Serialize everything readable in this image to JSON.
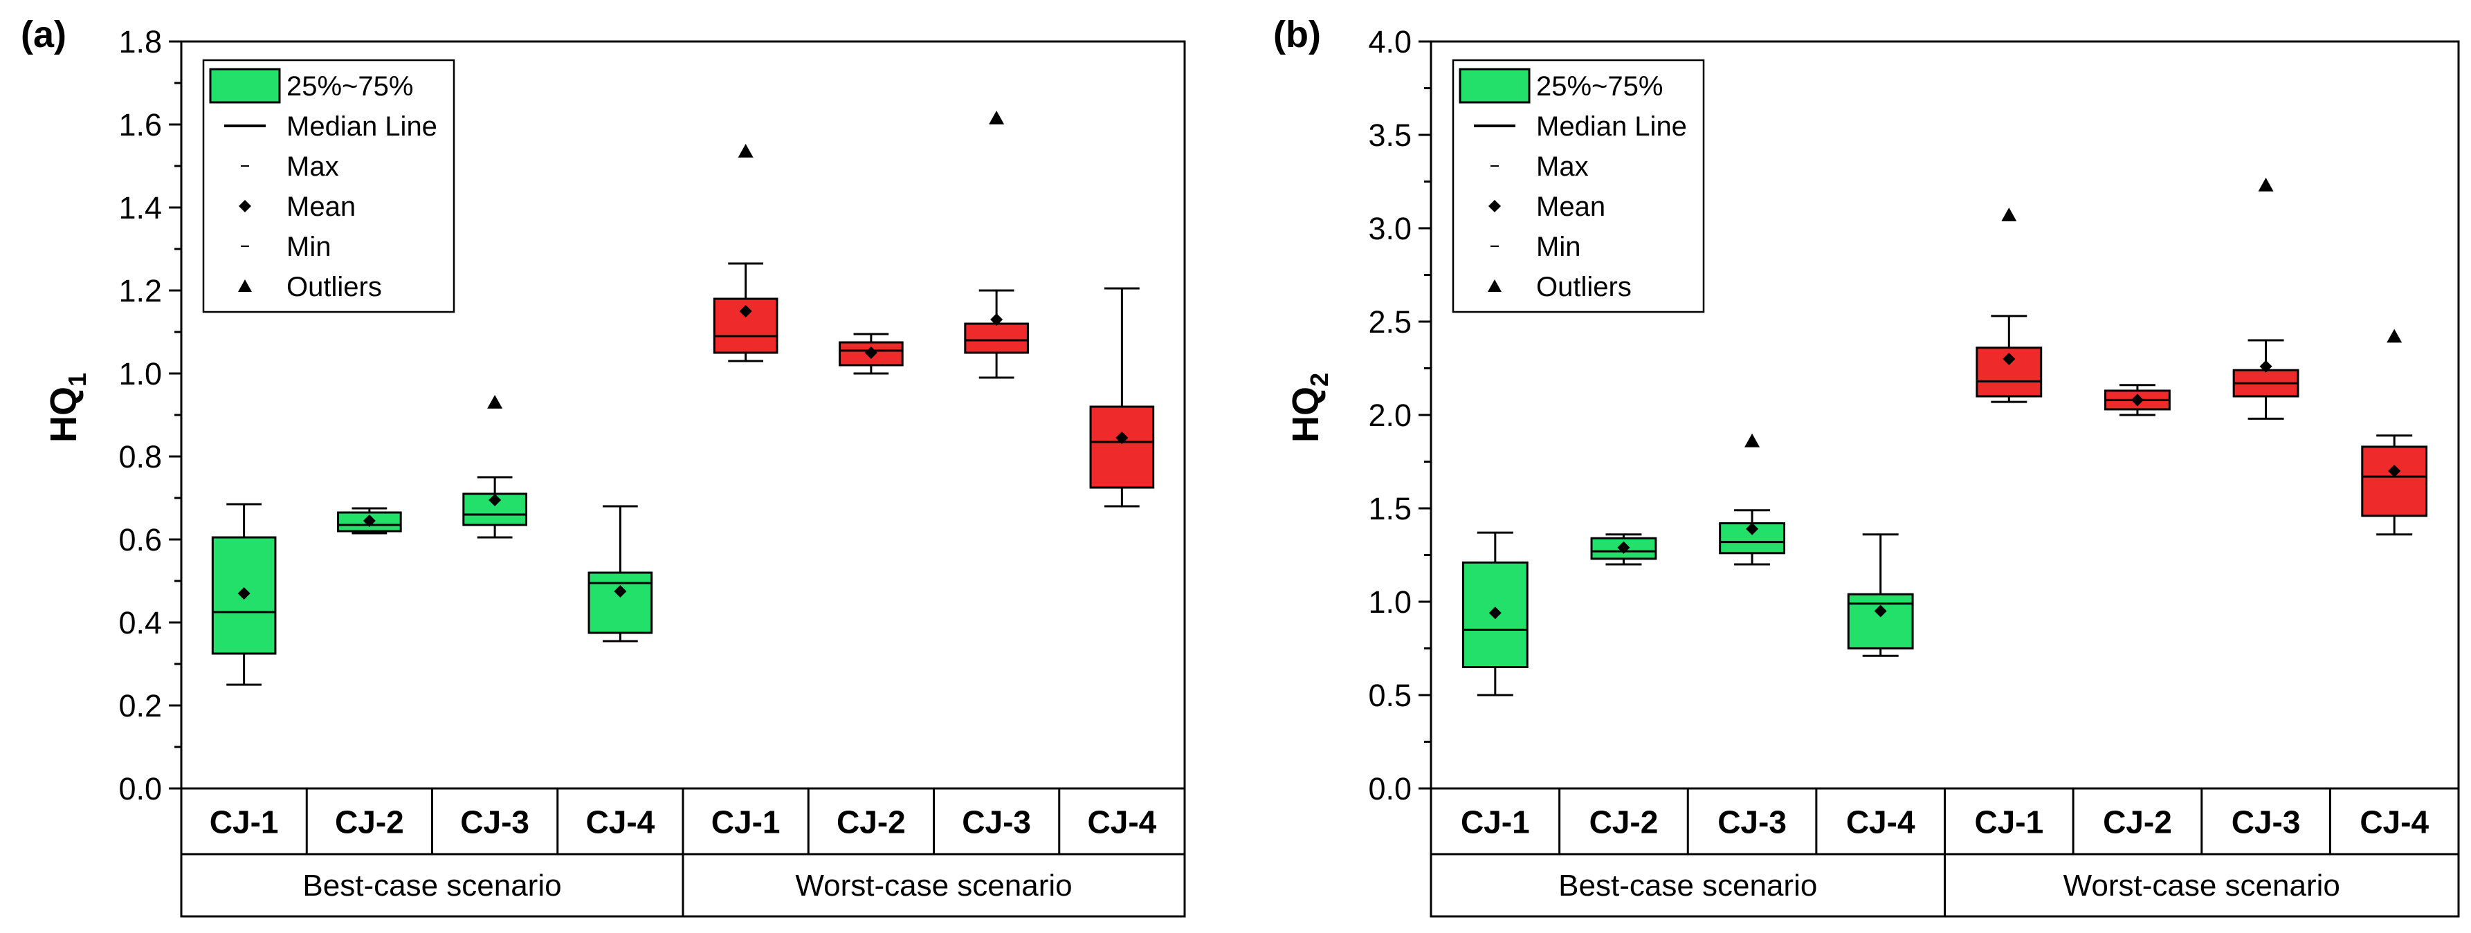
{
  "figure": {
    "panels": [
      "(a)",
      "(b)"
    ]
  },
  "chart_data": [
    {
      "type": "box",
      "panel_label": "(a)",
      "ylabel": "HQ",
      "ylabel_subscript": "1",
      "ylim": [
        0,
        1.8
      ],
      "yticks": [
        "0.0",
        "0.2",
        "0.4",
        "0.6",
        "0.8",
        "1.0",
        "1.2",
        "1.4",
        "1.6",
        "1.8"
      ],
      "yticks_values": [
        0,
        0.2,
        0.4,
        0.6,
        0.8,
        1.0,
        1.2,
        1.4,
        1.6,
        1.8
      ],
      "categories": [
        "CJ-1",
        "CJ-2",
        "CJ-3",
        "CJ-4",
        "CJ-1",
        "CJ-2",
        "CJ-3",
        "CJ-4"
      ],
      "groups": [
        {
          "label": "Best-case scenario",
          "span": [
            0,
            3
          ]
        },
        {
          "label": "Worst-case scenario",
          "span": [
            4,
            7
          ]
        }
      ],
      "legend": [
        "25%~75%",
        "Median Line",
        "Max",
        "Mean",
        "Min",
        "Outliers"
      ],
      "colors": {
        "best": "#22e06a",
        "worst": "#ee2a2a",
        "stroke": "#000000"
      },
      "boxes": [
        {
          "category": "CJ-1",
          "scenario": "best",
          "min": 0.25,
          "q1": 0.325,
          "median": 0.425,
          "q3": 0.605,
          "max": 0.685,
          "mean": 0.47,
          "outliers": []
        },
        {
          "category": "CJ-2",
          "scenario": "best",
          "min": 0.615,
          "q1": 0.62,
          "median": 0.635,
          "q3": 0.665,
          "max": 0.675,
          "mean": 0.645,
          "outliers": []
        },
        {
          "category": "CJ-3",
          "scenario": "best",
          "min": 0.605,
          "q1": 0.635,
          "median": 0.66,
          "q3": 0.71,
          "max": 0.75,
          "mean": 0.695,
          "outliers": [
            0.93
          ]
        },
        {
          "category": "CJ-4",
          "scenario": "best",
          "min": 0.355,
          "q1": 0.375,
          "median": 0.495,
          "q3": 0.52,
          "max": 0.68,
          "mean": 0.475,
          "outliers": []
        },
        {
          "category": "CJ-1",
          "scenario": "worst",
          "min": 1.03,
          "q1": 1.05,
          "median": 1.09,
          "q3": 1.18,
          "max": 1.265,
          "mean": 1.15,
          "outliers": [
            1.535
          ]
        },
        {
          "category": "CJ-2",
          "scenario": "worst",
          "min": 1.0,
          "q1": 1.02,
          "median": 1.055,
          "q3": 1.075,
          "max": 1.095,
          "mean": 1.05,
          "outliers": []
        },
        {
          "category": "CJ-3",
          "scenario": "worst",
          "min": 0.99,
          "q1": 1.05,
          "median": 1.08,
          "q3": 1.12,
          "max": 1.2,
          "mean": 1.13,
          "outliers": [
            1.615
          ]
        },
        {
          "category": "CJ-4",
          "scenario": "worst",
          "min": 0.68,
          "q1": 0.725,
          "median": 0.835,
          "q3": 0.92,
          "max": 1.205,
          "mean": 0.845,
          "outliers": []
        }
      ]
    },
    {
      "type": "box",
      "panel_label": "(b)",
      "ylabel": "HQ",
      "ylabel_subscript": "2",
      "ylim": [
        0,
        4.0
      ],
      "yticks": [
        "0.0",
        "0.5",
        "1.0",
        "1.5",
        "2.0",
        "2.5",
        "3.0",
        "3.5",
        "4.0"
      ],
      "yticks_values": [
        0,
        0.5,
        1.0,
        1.5,
        2.0,
        2.5,
        3.0,
        3.5,
        4.0
      ],
      "categories": [
        "CJ-1",
        "CJ-2",
        "CJ-3",
        "CJ-4",
        "CJ-1",
        "CJ-2",
        "CJ-3",
        "CJ-4"
      ],
      "groups": [
        {
          "label": "Best-case scenario",
          "span": [
            0,
            3
          ]
        },
        {
          "label": "Worst-case scenario",
          "span": [
            4,
            7
          ]
        }
      ],
      "legend": [
        "25%~75%",
        "Median Line",
        "Max",
        "Mean",
        "Min",
        "Outliers"
      ],
      "colors": {
        "best": "#22e06a",
        "worst": "#ee2a2a",
        "stroke": "#000000"
      },
      "boxes": [
        {
          "category": "CJ-1",
          "scenario": "best",
          "min": 0.5,
          "q1": 0.65,
          "median": 0.85,
          "q3": 1.21,
          "max": 1.37,
          "mean": 0.94,
          "outliers": []
        },
        {
          "category": "CJ-2",
          "scenario": "best",
          "min": 1.2,
          "q1": 1.23,
          "median": 1.27,
          "q3": 1.34,
          "max": 1.36,
          "mean": 1.29,
          "outliers": []
        },
        {
          "category": "CJ-3",
          "scenario": "best",
          "min": 1.2,
          "q1": 1.26,
          "median": 1.32,
          "q3": 1.42,
          "max": 1.49,
          "mean": 1.39,
          "outliers": [
            1.86
          ]
        },
        {
          "category": "CJ-4",
          "scenario": "best",
          "min": 0.71,
          "q1": 0.75,
          "median": 0.99,
          "q3": 1.04,
          "max": 1.36,
          "mean": 0.95,
          "outliers": []
        },
        {
          "category": "CJ-1",
          "scenario": "worst",
          "min": 2.07,
          "q1": 2.1,
          "median": 2.18,
          "q3": 2.36,
          "max": 2.53,
          "mean": 2.3,
          "outliers": [
            3.07
          ]
        },
        {
          "category": "CJ-2",
          "scenario": "worst",
          "min": 2.0,
          "q1": 2.03,
          "median": 2.08,
          "q3": 2.13,
          "max": 2.16,
          "mean": 2.08,
          "outliers": []
        },
        {
          "category": "CJ-3",
          "scenario": "worst",
          "min": 1.98,
          "q1": 2.1,
          "median": 2.17,
          "q3": 2.24,
          "max": 2.4,
          "mean": 2.26,
          "outliers": [
            3.23
          ]
        },
        {
          "category": "CJ-4",
          "scenario": "worst",
          "min": 1.36,
          "q1": 1.46,
          "median": 1.67,
          "q3": 1.83,
          "max": 1.89,
          "mean": 1.7,
          "outliers": [
            2.42
          ]
        }
      ]
    }
  ]
}
